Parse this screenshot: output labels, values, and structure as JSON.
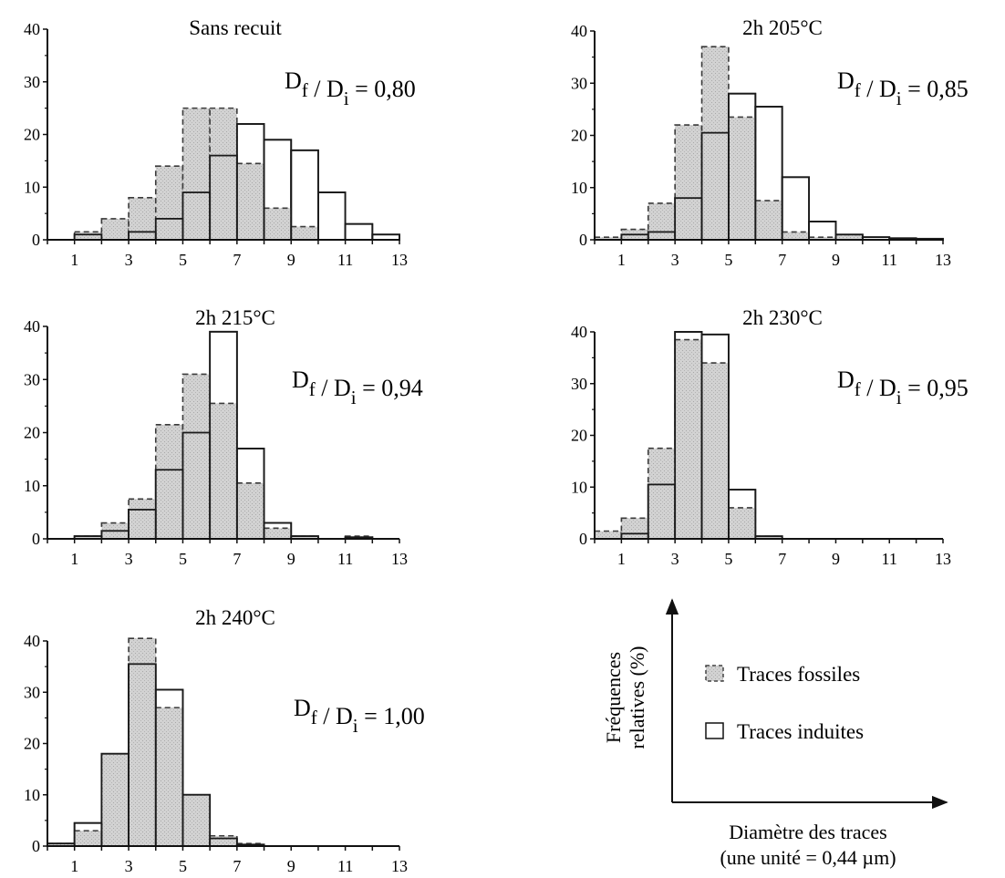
{
  "chart_data": [
    {
      "type": "bar",
      "title": "Sans recuit",
      "ratio": {
        "base": "D",
        "sub_f": "f",
        "mid": " / D",
        "sub_i": "i",
        "value": " = 0,80"
      },
      "x_ticks": [
        "1",
        "3",
        "5",
        "7",
        "9",
        "11",
        "13"
      ],
      "y_ticks": [
        "0",
        "10",
        "20",
        "30",
        "40"
      ],
      "xlim": [
        0,
        13
      ],
      "ylim": [
        0,
        40
      ],
      "bins": [
        [
          0,
          1
        ],
        [
          1,
          2
        ],
        [
          2,
          3
        ],
        [
          3,
          4
        ],
        [
          4,
          5
        ],
        [
          5,
          6
        ],
        [
          6,
          7
        ],
        [
          7,
          8
        ],
        [
          8,
          9
        ],
        [
          9,
          10
        ],
        [
          10,
          11
        ],
        [
          11,
          12
        ],
        [
          12,
          13
        ]
      ],
      "series": [
        {
          "name": "Traces fossiles",
          "values": [
            0,
            1.5,
            4,
            8,
            14,
            25,
            25,
            14.5,
            6,
            2.5,
            0,
            0,
            0
          ]
        },
        {
          "name": "Traces induites",
          "values": [
            0,
            1,
            0,
            1.5,
            4,
            9,
            16,
            22,
            19,
            17,
            9,
            3,
            1
          ]
        }
      ]
    },
    {
      "type": "bar",
      "title": "2h 205°C",
      "ratio": {
        "base": "D",
        "sub_f": "f",
        "mid": " / D",
        "sub_i": "i",
        "value": " = 0,85"
      },
      "x_ticks": [
        "1",
        "3",
        "5",
        "7",
        "9",
        "11",
        "13"
      ],
      "y_ticks": [
        "0",
        "10",
        "20",
        "30",
        "40"
      ],
      "xlim": [
        0,
        13
      ],
      "ylim": [
        0,
        40
      ],
      "bins": [
        [
          0,
          1
        ],
        [
          1,
          2
        ],
        [
          2,
          3
        ],
        [
          3,
          4
        ],
        [
          4,
          5
        ],
        [
          5,
          6
        ],
        [
          6,
          7
        ],
        [
          7,
          8
        ],
        [
          8,
          9
        ],
        [
          9,
          10
        ],
        [
          10,
          11
        ],
        [
          11,
          12
        ],
        [
          12,
          13
        ]
      ],
      "series": [
        {
          "name": "Traces fossiles",
          "values": [
            0.5,
            2,
            7,
            22,
            37,
            23.5,
            7.5,
            1.5,
            0.5,
            1,
            0,
            0,
            0
          ]
        },
        {
          "name": "Traces induites",
          "values": [
            0,
            1,
            1.5,
            8,
            20.5,
            28,
            25.5,
            12,
            3.5,
            1,
            0.5,
            0.3,
            0.2
          ]
        }
      ]
    },
    {
      "type": "bar",
      "title": "2h 215°C",
      "ratio": {
        "base": "D",
        "sub_f": "f",
        "mid": " / D",
        "sub_i": "i",
        "value": " = 0,94"
      },
      "x_ticks": [
        "1",
        "3",
        "5",
        "7",
        "9",
        "11",
        "13"
      ],
      "y_ticks": [
        "0",
        "10",
        "20",
        "30",
        "40"
      ],
      "xlim": [
        0,
        13
      ],
      "ylim": [
        0,
        40
      ],
      "bins": [
        [
          0,
          1
        ],
        [
          1,
          2
        ],
        [
          2,
          3
        ],
        [
          3,
          4
        ],
        [
          4,
          5
        ],
        [
          5,
          6
        ],
        [
          6,
          7
        ],
        [
          7,
          8
        ],
        [
          8,
          9
        ],
        [
          9,
          10
        ],
        [
          10,
          11
        ],
        [
          11,
          12
        ],
        [
          12,
          13
        ]
      ],
      "series": [
        {
          "name": "Traces fossiles",
          "values": [
            0,
            0.5,
            3,
            7.5,
            21.5,
            31,
            25.5,
            10.5,
            2,
            0.5,
            0,
            0.5,
            0
          ]
        },
        {
          "name": "Traces induites",
          "values": [
            0,
            0.5,
            1.5,
            5.5,
            13,
            20,
            39,
            17,
            3,
            0.5,
            0,
            0.3,
            0
          ]
        }
      ]
    },
    {
      "type": "bar",
      "title": "2h 230°C",
      "ratio": {
        "base": "D",
        "sub_f": "f",
        "mid": " / D",
        "sub_i": "i",
        "value": " = 0,95"
      },
      "x_ticks": [
        "1",
        "3",
        "5",
        "7",
        "9",
        "11",
        "13"
      ],
      "y_ticks": [
        "0",
        "10",
        "20",
        "30",
        "40"
      ],
      "xlim": [
        0,
        13
      ],
      "ylim": [
        0,
        40
      ],
      "bins": [
        [
          0,
          1
        ],
        [
          1,
          2
        ],
        [
          2,
          3
        ],
        [
          3,
          4
        ],
        [
          4,
          5
        ],
        [
          5,
          6
        ],
        [
          6,
          7
        ],
        [
          7,
          8
        ],
        [
          8,
          9
        ],
        [
          9,
          10
        ],
        [
          10,
          11
        ],
        [
          11,
          12
        ],
        [
          12,
          13
        ]
      ],
      "series": [
        {
          "name": "Traces fossiles",
          "values": [
            1.5,
            4,
            17.5,
            38.5,
            34,
            6,
            0.5,
            0,
            0,
            0,
            0,
            0,
            0
          ]
        },
        {
          "name": "Traces induites",
          "values": [
            0,
            1,
            10.5,
            40,
            39.5,
            9.5,
            0.5,
            0,
            0,
            0,
            0,
            0,
            0
          ]
        }
      ]
    },
    {
      "type": "bar",
      "title": "2h 240°C",
      "ratio": {
        "base": "D",
        "sub_f": "f",
        "mid": " / D",
        "sub_i": "i",
        "value": " = 1,00"
      },
      "x_ticks": [
        "1",
        "3",
        "5",
        "7",
        "9",
        "11",
        "13"
      ],
      "y_ticks": [
        "0",
        "10",
        "20",
        "30",
        "40"
      ],
      "xlim": [
        0,
        13
      ],
      "ylim": [
        0,
        40
      ],
      "bins": [
        [
          0,
          1
        ],
        [
          1,
          2
        ],
        [
          2,
          3
        ],
        [
          3,
          4
        ],
        [
          4,
          5
        ],
        [
          5,
          6
        ],
        [
          6,
          7
        ],
        [
          7,
          8
        ],
        [
          8,
          9
        ],
        [
          9,
          10
        ],
        [
          10,
          11
        ],
        [
          11,
          12
        ],
        [
          12,
          13
        ]
      ],
      "series": [
        {
          "name": "Traces fossiles",
          "values": [
            0.5,
            3,
            18,
            40.5,
            27,
            10,
            2,
            0.5,
            0,
            0,
            0,
            0,
            0
          ]
        },
        {
          "name": "Traces induites",
          "values": [
            0.5,
            4.5,
            18,
            35.5,
            30.5,
            10,
            1.5,
            0.3,
            0,
            0,
            0,
            0,
            0
          ]
        }
      ]
    }
  ],
  "legend": {
    "fossil_label": "Traces fossiles",
    "induced_label": "Traces induites",
    "y_axis_label_line1": "Fréquences",
    "y_axis_label_line2": "relatives (%)",
    "x_axis_label_line1": "Diamètre des traces",
    "x_axis_label_line2": "(une unité = 0,44 µm)"
  },
  "colors": {
    "fossil_fill": "#cfcfcf",
    "induced_fill": "#ffffff",
    "stroke": "#1a1a1a"
  }
}
